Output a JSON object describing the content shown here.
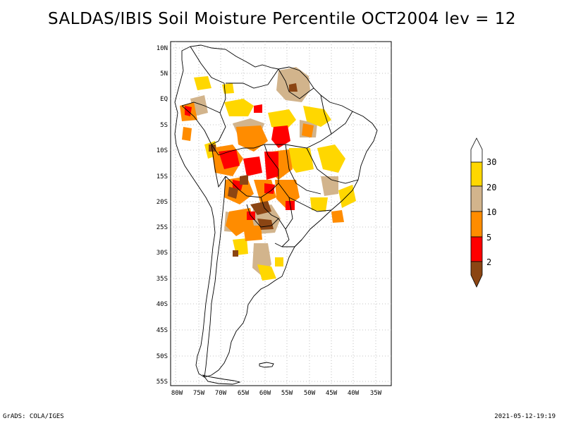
{
  "title": "SALDAS/IBIS Soil Moisture Percentile OCT2004 lev = 12",
  "map": {
    "lat_ticks": [
      "10N",
      "5N",
      "EQ",
      "5S",
      "10S",
      "15S",
      "20S",
      "25S",
      "30S",
      "35S",
      "40S",
      "45S",
      "50S",
      "55S"
    ],
    "lon_ticks": [
      "80W",
      "75W",
      "70W",
      "65W",
      "60W",
      "55W",
      "50W",
      "45W",
      "40W",
      "35W"
    ],
    "lon_range": [
      -81,
      -33
    ],
    "lat_range": [
      -56,
      11
    ]
  },
  "legend": {
    "labels": [
      "30",
      "20",
      "10",
      "5",
      "2"
    ],
    "colors": {
      "above_30": "#ffffff",
      "20_30": "#ffd700",
      "10_20": "#d2b48c",
      "5_10": "#ff8c00",
      "2_5": "#ff0000",
      "below_2": "#8b4513"
    }
  },
  "footer": {
    "left": "GrADS: COLA/IGES",
    "right": "2021-05-12-19:19"
  }
}
